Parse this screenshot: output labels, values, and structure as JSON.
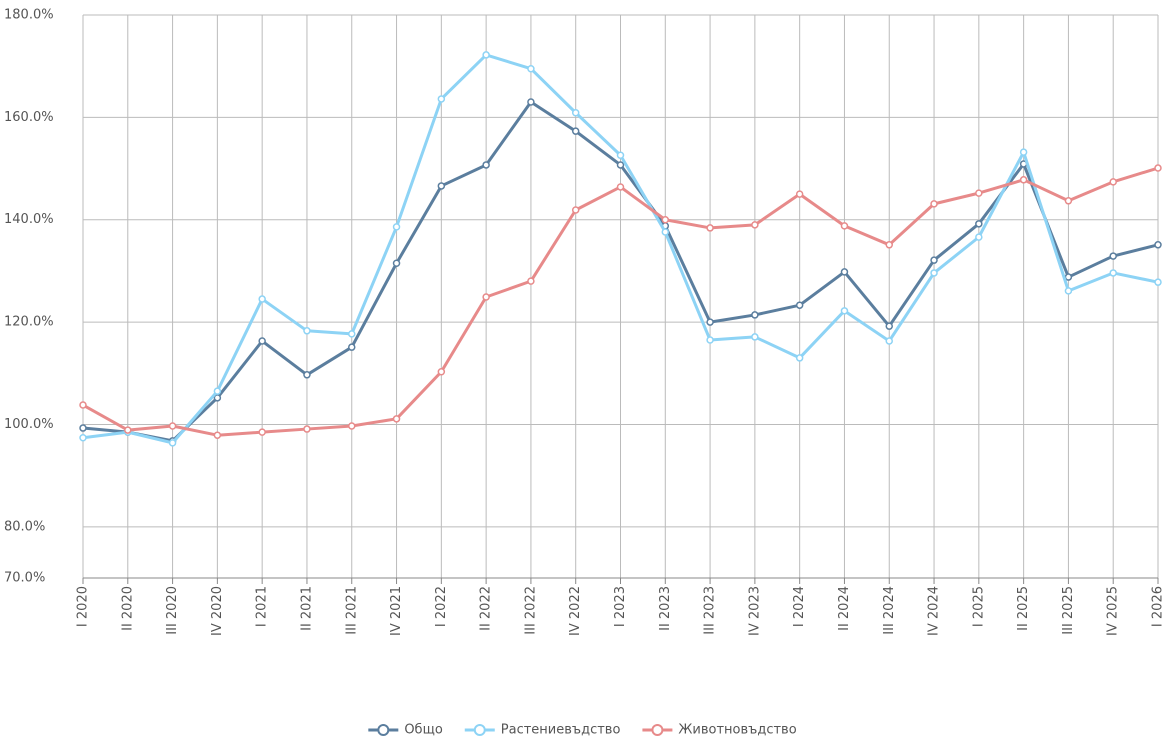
{
  "chart_data": {
    "type": "line",
    "categories": [
      "I 2020",
      "II 2020",
      "III 2020",
      "IV 2020",
      "I 2021",
      "II 2021",
      "III 2021",
      "IV 2021",
      "I 2022",
      "II 2022",
      "III 2022",
      "IV 2022",
      "I 2023",
      "II 2023",
      "III 2023",
      "IV 2023",
      "I 2024",
      "II 2024",
      "III 2024",
      "IV 2024",
      "I 2025",
      "II 2025",
      "III 2025",
      "IV 2025",
      "I 2026"
    ],
    "series": [
      {
        "name": "Общо",
        "color": "#5b7e9e",
        "values": [
          99.3,
          98.5,
          96.8,
          105.2,
          116.3,
          109.7,
          115.1,
          131.5,
          146.6,
          150.7,
          163.0,
          157.3,
          150.7,
          138.8,
          120.0,
          121.4,
          123.3,
          129.8,
          119.2,
          132.1,
          139.2,
          150.9,
          128.8,
          132.9,
          135.1
        ]
      },
      {
        "name": "Растениевъдство",
        "color": "#8dd3f5",
        "values": [
          97.4,
          98.5,
          96.4,
          106.5,
          124.5,
          118.3,
          117.7,
          138.6,
          163.6,
          172.2,
          169.5,
          160.9,
          152.6,
          137.6,
          116.5,
          117.1,
          113.0,
          122.2,
          116.3,
          129.6,
          136.6,
          153.2,
          126.1,
          129.6,
          127.8
        ]
      },
      {
        "name": "Животновъдство",
        "color": "#e78a8a",
        "values": [
          103.8,
          98.9,
          99.7,
          97.9,
          98.5,
          99.1,
          99.7,
          101.1,
          110.3,
          124.9,
          128.0,
          141.9,
          146.4,
          140.0,
          138.4,
          139.0,
          145.0,
          138.8,
          135.1,
          143.1,
          145.2,
          147.8,
          143.7,
          147.4,
          150.1
        ]
      }
    ],
    "ylim": [
      70,
      180
    ],
    "yticks": [
      {
        "value": 70,
        "label": "70.0%"
      },
      {
        "value": 80,
        "label": "80.0%"
      },
      {
        "value": 100,
        "label": "100.0%"
      },
      {
        "value": 120,
        "label": "120.0%"
      },
      {
        "value": 140,
        "label": "140.0%"
      },
      {
        "value": 160,
        "label": "160.0%"
      },
      {
        "value": 180,
        "label": "180.0%"
      }
    ],
    "grid": true,
    "legend": "bottom"
  }
}
